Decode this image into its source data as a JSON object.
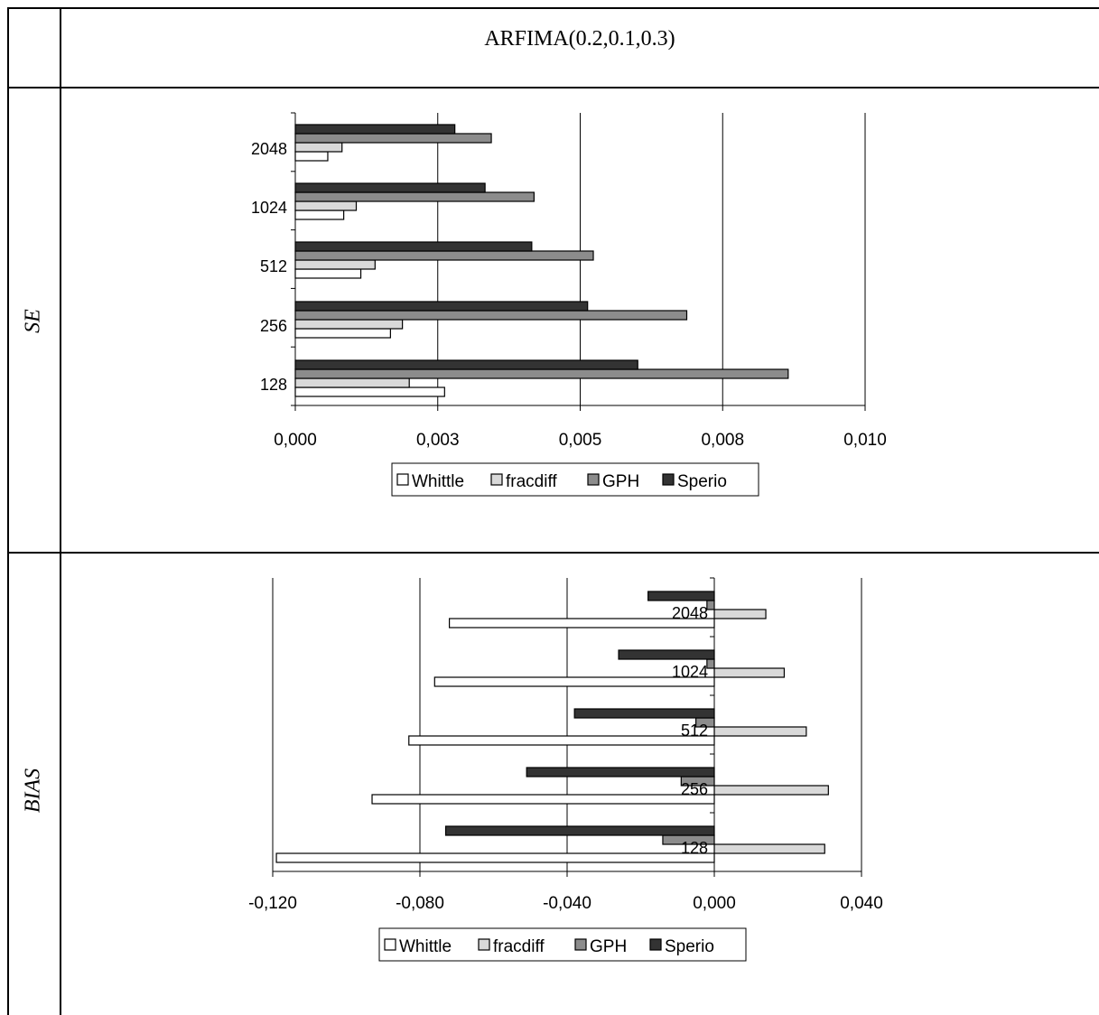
{
  "table": {
    "header_title": "ARFIMA(0.2,0.1,0.3)",
    "row_labels": [
      "SE",
      "BIAS"
    ]
  },
  "colors": {
    "Whittle": "#ffffff",
    "fracdiff": "#d9d9d9",
    "GPH": "#8c8c8c",
    "Sperio": "#333333"
  },
  "chart_data": [
    {
      "type": "bar",
      "orientation": "horizontal",
      "categories": [
        "128",
        "256",
        "512",
        "1024",
        "2048"
      ],
      "xlim": [
        0,
        0.01
      ],
      "xticks": [
        "0,000",
        "0,003",
        "0,005",
        "0,008",
        "0,010"
      ],
      "grid": true,
      "legend": "bottom",
      "series": [
        {
          "name": "Whittle",
          "values": [
            0.00262,
            0.00167,
            0.00115,
            0.00085,
            0.00057
          ]
        },
        {
          "name": "fracdiff",
          "values": [
            0.002,
            0.00188,
            0.0014,
            0.00107,
            0.00082
          ]
        },
        {
          "name": "GPH",
          "values": [
            0.00865,
            0.00687,
            0.00523,
            0.00419,
            0.00344
          ]
        },
        {
          "name": "Sperio",
          "values": [
            0.00601,
            0.00513,
            0.00415,
            0.00333,
            0.0028
          ]
        }
      ]
    },
    {
      "type": "bar",
      "orientation": "horizontal",
      "categories": [
        "128",
        "256",
        "512",
        "1024",
        "2048"
      ],
      "xlim": [
        -0.12,
        0.04
      ],
      "xticks": [
        "-0,120",
        "-0,080",
        "-0,040",
        "0,000",
        "0,040"
      ],
      "grid": true,
      "legend": "bottom",
      "series": [
        {
          "name": "Whittle",
          "values": [
            -0.119,
            -0.093,
            -0.083,
            -0.076,
            -0.072
          ]
        },
        {
          "name": "fracdiff",
          "values": [
            0.03,
            0.031,
            0.025,
            0.019,
            0.014
          ]
        },
        {
          "name": "GPH",
          "values": [
            -0.014,
            -0.009,
            -0.005,
            -0.002,
            -0.002
          ]
        },
        {
          "name": "Sperio",
          "values": [
            -0.073,
            -0.051,
            -0.038,
            -0.026,
            -0.018
          ]
        }
      ]
    }
  ]
}
